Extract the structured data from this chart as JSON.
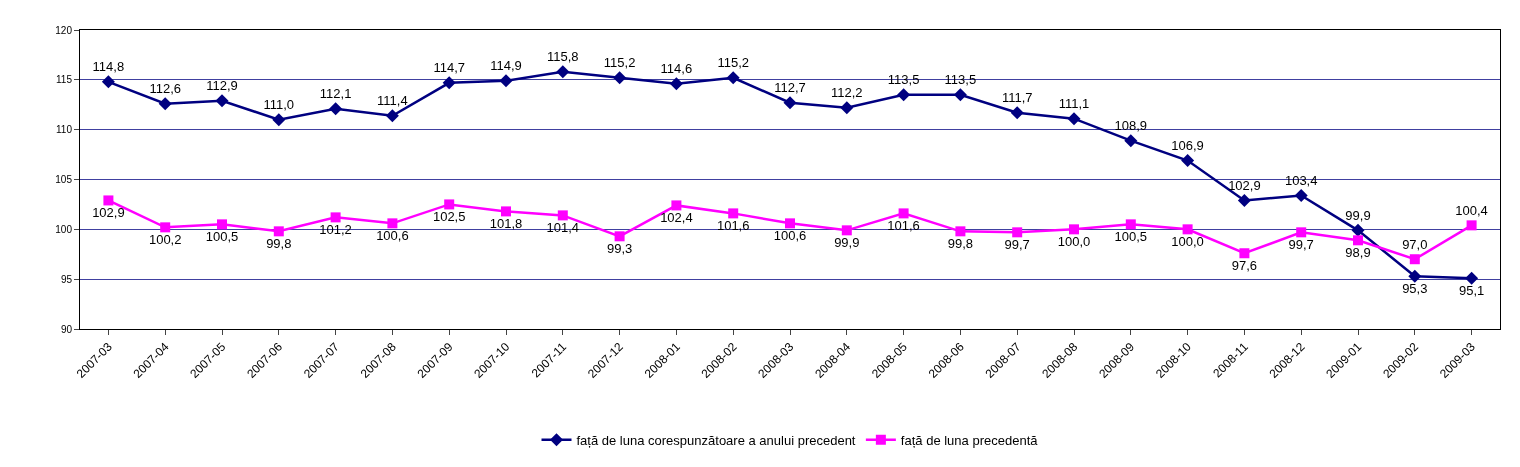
{
  "chart_data": {
    "type": "line",
    "categories": [
      "2007-03",
      "2007-04",
      "2007-05",
      "2007-06",
      "2007-07",
      "2007-08",
      "2007-09",
      "2007-10",
      "2007-11",
      "2007-12",
      "2008-01",
      "2008-02",
      "2008-03",
      "2008-04",
      "2008-05",
      "2008-06",
      "2008-07",
      "2008-08",
      "2008-09",
      "2008-10",
      "2008-11",
      "2008-12",
      "2009-01",
      "2009-02",
      "2009-03"
    ],
    "series": [
      {
        "name": "față de luna corespunzătoare a anului precedent",
        "color": "#000080",
        "marker": "diamond",
        "values": [
          114.8,
          112.6,
          112.9,
          111.0,
          112.1,
          111.4,
          114.7,
          114.9,
          115.8,
          115.2,
          114.6,
          115.2,
          112.7,
          112.2,
          113.5,
          113.5,
          111.7,
          111.1,
          108.9,
          106.9,
          102.9,
          103.4,
          99.9,
          95.3,
          95.1
        ],
        "value_labels": [
          "114,8",
          "112,6",
          "112,9",
          "111,0",
          "112,1",
          "111,4",
          "114,7",
          "114,9",
          "115,8",
          "115,2",
          "114,6",
          "115,2",
          "112,7",
          "112,2",
          "113,5",
          "113,5",
          "111,7",
          "111,1",
          "108,9",
          "106,9",
          "102,9",
          "103,4",
          "99,9",
          "95,3",
          "95,1"
        ]
      },
      {
        "name": "față de luna precedentă",
        "color": "#ff00ff",
        "marker": "square",
        "values": [
          102.9,
          100.2,
          100.5,
          99.8,
          101.2,
          100.6,
          102.5,
          101.8,
          101.4,
          99.3,
          102.4,
          101.6,
          100.6,
          99.9,
          101.6,
          99.8,
          99.7,
          100.0,
          100.5,
          100.0,
          97.6,
          99.7,
          98.9,
          97.0,
          100.4
        ],
        "value_labels": [
          "102,9",
          "100,2",
          "100,5",
          "99,8",
          "101,2",
          "100,6",
          "102,5",
          "101,8",
          "101,4",
          "99,3",
          "102,4",
          "101,6",
          "100,6",
          "99,9",
          "101,6",
          "99,8",
          "99,7",
          "100,0",
          "100,5",
          "100,0",
          "97,6",
          "99,7",
          "98,9",
          "97,0",
          "100,4"
        ]
      }
    ],
    "ylim": [
      90,
      120
    ],
    "yticks": [
      90,
      95,
      100,
      105,
      110,
      115,
      120
    ],
    "grid": "y",
    "legend": "bottom",
    "line_style": "solid"
  }
}
